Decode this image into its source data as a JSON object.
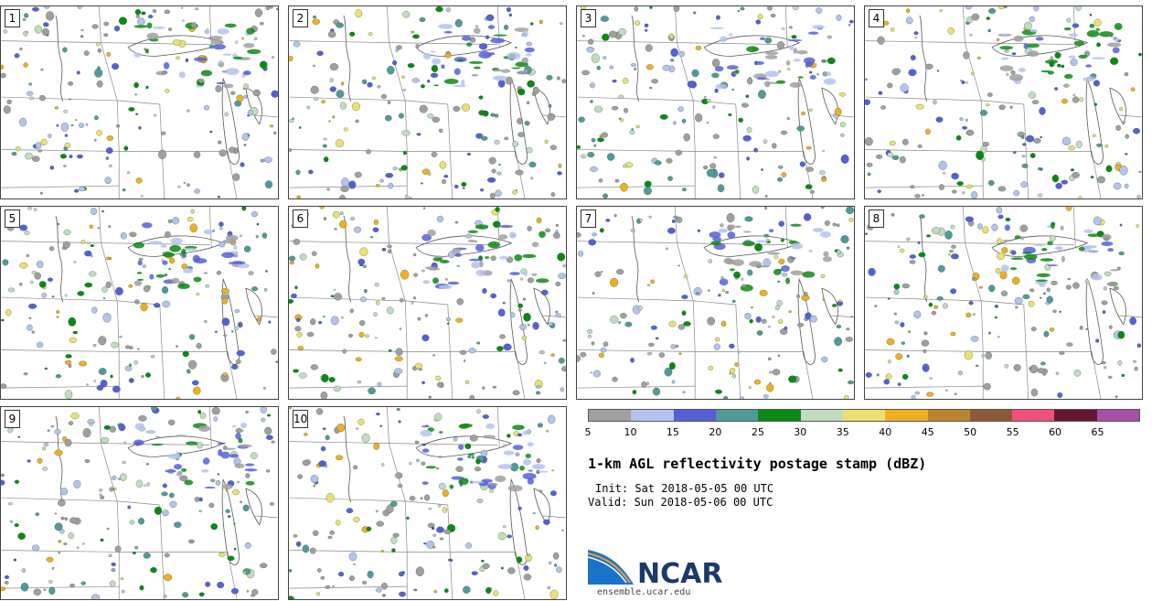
{
  "panels": [
    {
      "label": "1"
    },
    {
      "label": "2"
    },
    {
      "label": "3"
    },
    {
      "label": "4"
    },
    {
      "label": "5"
    },
    {
      "label": "6"
    },
    {
      "label": "7"
    },
    {
      "label": "8"
    },
    {
      "label": "9"
    },
    {
      "label": "10"
    }
  ],
  "colorbar": {
    "colors": [
      "#a0a0a0",
      "#b4c3ee",
      "#5560d8",
      "#529a9a",
      "#0a8a12",
      "#c2dcc0",
      "#ede070",
      "#eeb022",
      "#bb8430",
      "#8c5a3a",
      "#f0507a",
      "#661634",
      "#a850a8"
    ],
    "ticks": [
      "5",
      "10",
      "15",
      "20",
      "25",
      "30",
      "35",
      "40",
      "45",
      "50",
      "55",
      "60",
      "65"
    ]
  },
  "title": "1-km AGL reflectivity postage stamp (dBZ)",
  "init": "Init: Sat 2018-05-05 00 UTC",
  "valid": "Valid: Sun 2018-05-06 00 UTC",
  "logo": {
    "name": "NCAR",
    "url": "ensemble.ucar.edu"
  }
}
